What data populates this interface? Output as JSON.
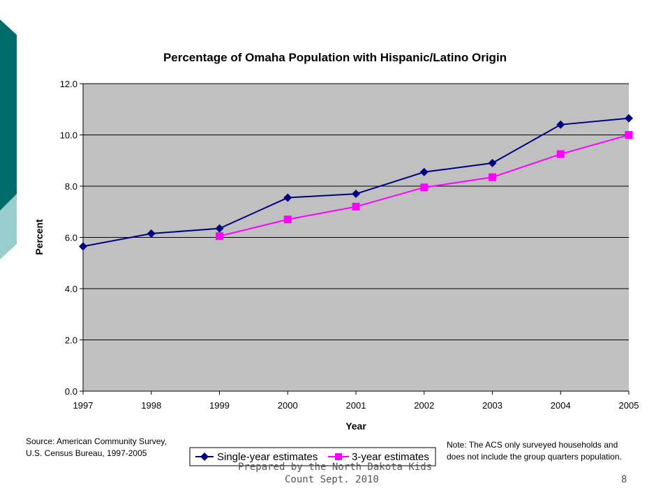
{
  "chart_data": {
    "type": "line",
    "title": "Percentage of Omaha Population with Hispanic/Latino Origin",
    "xlabel": "Year",
    "ylabel": "Percent",
    "categories": [
      "1997",
      "1998",
      "1999",
      "2000",
      "2001",
      "2002",
      "2003",
      "2004",
      "2005"
    ],
    "ylim": [
      0,
      12
    ],
    "yticks": [
      "0.0",
      "2.0",
      "4.0",
      "6.0",
      "8.0",
      "10.0",
      "12.0"
    ],
    "grid": "horizontal",
    "legend_position": "bottom",
    "series": [
      {
        "name": "Single-year estimates",
        "color": "#000080",
        "marker": "diamond",
        "values": [
          5.65,
          6.15,
          6.35,
          7.55,
          7.7,
          8.55,
          8.9,
          10.4,
          10.65
        ]
      },
      {
        "name": "3-year estimates",
        "color": "#ff00ff",
        "marker": "square",
        "values": [
          null,
          null,
          6.05,
          6.7,
          7.2,
          7.95,
          8.35,
          9.25,
          10.0
        ]
      }
    ]
  },
  "source_note": {
    "line1": "Source: American Community Survey,",
    "line2": "U.S. Census Bureau, 1997-2005"
  },
  "acs_note": {
    "line1": "Note: The ACS only surveyed households and",
    "line2": "does not include the group quarters population."
  },
  "footer": {
    "line1": "Prepared by the North Dakota Kids",
    "line2": "Count Sept. 2010",
    "page_number": "8"
  },
  "colors": {
    "plot_background": "#c0c0c0",
    "deco_dark_teal": "#006b6b",
    "deco_light_teal": "#99cccc"
  }
}
